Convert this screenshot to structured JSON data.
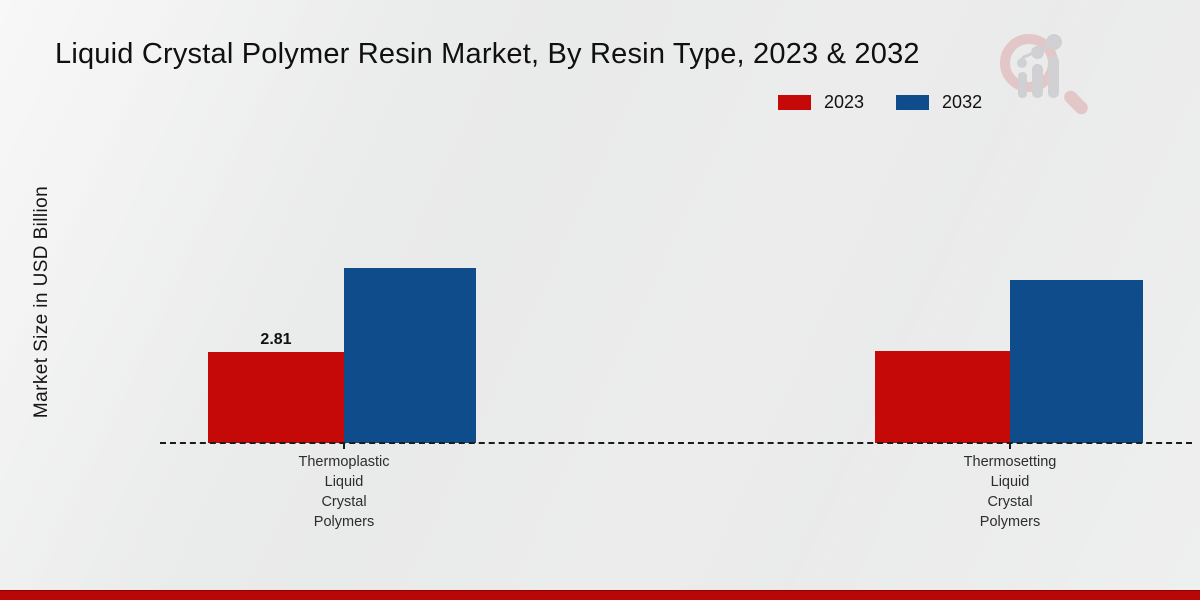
{
  "title": "Liquid Crystal Polymer Resin Market, By Resin Type, 2023 & 2032",
  "watermark_icon": "magnifier-bar-chart-logo",
  "accent_colors": {
    "footer_strip": "#b90606"
  },
  "chart_data": {
    "type": "bar",
    "title": "Liquid Crystal Polymer Resin Market, By Resin Type, 2023 & 2032",
    "categories": [
      "Thermoplastic Liquid Crystal Polymers",
      "Thermosetting Liquid Crystal Polymers"
    ],
    "category_display": [
      "Thermoplastic\nLiquid\nCrystal\nPolymers",
      "Thermosetting\nLiquid\nCrystal\nPolymers"
    ],
    "series": [
      {
        "name": "2023",
        "color": "#c50808",
        "values": [
          2.81,
          2.84
        ],
        "data_labels": [
          "2.81",
          ""
        ]
      },
      {
        "name": "2032",
        "color": "#0f4c8c",
        "values": [
          5.4,
          5.02
        ],
        "data_labels": [
          "",
          ""
        ]
      }
    ],
    "xlabel": "",
    "ylabel": "Market Size in USD Billion",
    "ylim": [
      0,
      6
    ],
    "y_axis_ticks_visible": false,
    "grid": false,
    "baseline_style": "dashed",
    "legend_position": "top-right"
  }
}
